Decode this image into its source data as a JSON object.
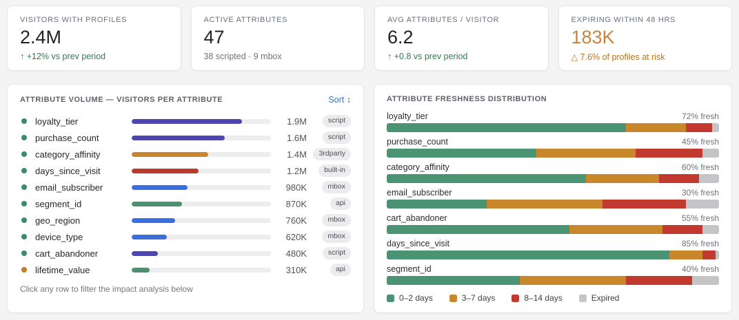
{
  "kpis": [
    {
      "label": "VISITORS WITH PROFILES",
      "value": "2.4M",
      "delta": "↑ +12% vs prev period",
      "tone": "positive",
      "value_tone": "default"
    },
    {
      "label": "ACTIVE ATTRIBUTES",
      "value": "47",
      "delta": "38 scripted · 9 mbox",
      "tone": "neutral",
      "value_tone": "default"
    },
    {
      "label": "AVG ATTRIBUTES / VISITOR",
      "value": "6.2",
      "delta": "↑ +0.8 vs prev period",
      "tone": "positive",
      "value_tone": "default"
    },
    {
      "label": "EXPIRING WITHIN 48 HRS",
      "value": "183K",
      "delta": "△ 7.6% of profiles at risk",
      "tone": "warning",
      "value_tone": "warning"
    }
  ],
  "volume_panel": {
    "title": "ATTRIBUTE VOLUME — VISITORS PER ATTRIBUTE",
    "sort_label": "Sort",
    "sort_icon": "↕",
    "footer": "Click any row to filter the impact analysis below",
    "rows": [
      {
        "name": "loyalty_tier",
        "value": "1.9M",
        "badge": "script",
        "bar_color": "purple",
        "bar_pct": 79,
        "dot": "green"
      },
      {
        "name": "purchase_count",
        "value": "1.6M",
        "badge": "script",
        "bar_color": "purple",
        "bar_pct": 67,
        "dot": "green"
      },
      {
        "name": "category_affinity",
        "value": "1.4M",
        "badge": "3rdparty",
        "bar_color": "orange",
        "bar_pct": 55,
        "dot": "green"
      },
      {
        "name": "days_since_visit",
        "value": "1.2M",
        "badge": "built-in",
        "bar_color": "red",
        "bar_pct": 48,
        "dot": "green"
      },
      {
        "name": "email_subscriber",
        "value": "980K",
        "badge": "mbox",
        "bar_color": "blue",
        "bar_pct": 40,
        "dot": "green"
      },
      {
        "name": "segment_id",
        "value": "870K",
        "badge": "api",
        "bar_color": "green",
        "bar_pct": 36,
        "dot": "green"
      },
      {
        "name": "geo_region",
        "value": "760K",
        "badge": "mbox",
        "bar_color": "blue",
        "bar_pct": 31,
        "dot": "green"
      },
      {
        "name": "device_type",
        "value": "620K",
        "badge": "mbox",
        "bar_color": "blue",
        "bar_pct": 25,
        "dot": "green"
      },
      {
        "name": "cart_abandoner",
        "value": "480K",
        "badge": "script",
        "bar_color": "purple",
        "bar_pct": 19,
        "dot": "green"
      },
      {
        "name": "lifetime_value",
        "value": "310K",
        "badge": "api",
        "bar_color": "green",
        "bar_pct": 13,
        "dot": "orange"
      }
    ]
  },
  "freshness_panel": {
    "title": "ATTRIBUTE FRESHNESS DISTRIBUTION",
    "rows": [
      {
        "name": "loyalty_tier",
        "pct_label": "72% fresh",
        "segments": [
          72,
          18,
          8,
          2
        ]
      },
      {
        "name": "purchase_count",
        "pct_label": "45% fresh",
        "segments": [
          45,
          30,
          20,
          5
        ]
      },
      {
        "name": "category_affinity",
        "pct_label": "60% fresh",
        "segments": [
          60,
          22,
          12,
          6
        ]
      },
      {
        "name": "email_subscriber",
        "pct_label": "30% fresh",
        "segments": [
          30,
          35,
          25,
          10
        ]
      },
      {
        "name": "cart_abandoner",
        "pct_label": "55% fresh",
        "segments": [
          55,
          28,
          12,
          5
        ]
      },
      {
        "name": "days_since_visit",
        "pct_label": "85% fresh",
        "segments": [
          85,
          10,
          4,
          1
        ]
      },
      {
        "name": "segment_id",
        "pct_label": "40% fresh",
        "segments": [
          40,
          32,
          20,
          8
        ]
      }
    ],
    "legend": [
      {
        "label": "0–2 days",
        "color": "#4b9473"
      },
      {
        "label": "3–7 days",
        "color": "#c8872b"
      },
      {
        "label": "8–14 days",
        "color": "#c23a2f"
      },
      {
        "label": "Expired",
        "color": "#c5c5c7"
      }
    ]
  },
  "chart_data": [
    {
      "type": "bar",
      "title": "ATTRIBUTE VOLUME — VISITORS PER ATTRIBUTE",
      "categories": [
        "loyalty_tier",
        "purchase_count",
        "category_affinity",
        "days_since_visit",
        "email_subscriber",
        "segment_id",
        "geo_region",
        "device_type",
        "cart_abandoner",
        "lifetime_value"
      ],
      "values": [
        1900000,
        1600000,
        1400000,
        1200000,
        980000,
        870000,
        760000,
        620000,
        480000,
        310000
      ],
      "value_labels": [
        "1.9M",
        "1.6M",
        "1.4M",
        "1.2M",
        "980K",
        "870K",
        "760K",
        "620K",
        "480K",
        "310K"
      ],
      "badges": [
        "script",
        "script",
        "3rdparty",
        "built-in",
        "mbox",
        "api",
        "mbox",
        "mbox",
        "script",
        "api"
      ],
      "xlim": [
        0,
        2400000
      ]
    },
    {
      "type": "bar",
      "subtype": "stacked-horizontal",
      "title": "ATTRIBUTE FRESHNESS DISTRIBUTION",
      "categories": [
        "loyalty_tier",
        "purchase_count",
        "category_affinity",
        "email_subscriber",
        "cart_abandoner",
        "days_since_visit",
        "segment_id"
      ],
      "series": [
        {
          "name": "0–2 days",
          "values": [
            72,
            45,
            60,
            30,
            55,
            85,
            40
          ]
        },
        {
          "name": "3–7 days",
          "values": [
            18,
            30,
            22,
            35,
            28,
            10,
            32
          ]
        },
        {
          "name": "8–14 days",
          "values": [
            8,
            20,
            12,
            25,
            12,
            4,
            20
          ]
        },
        {
          "name": "Expired",
          "values": [
            2,
            5,
            6,
            10,
            5,
            1,
            8
          ]
        }
      ],
      "annotations": [
        "72% fresh",
        "45% fresh",
        "60% fresh",
        "30% fresh",
        "55% fresh",
        "85% fresh",
        "40% fresh"
      ],
      "legend_position": "bottom",
      "xlim": [
        0,
        100
      ]
    }
  ],
  "colors": {
    "bars": {
      "purple": "#4c45b2",
      "blue": "#3b6edd",
      "orange": "#c8862a",
      "red": "#ba392f",
      "green": "#4a9170"
    },
    "dots": {
      "green": "#3a8b66",
      "orange": "#c2792a"
    },
    "segments": [
      "#4b9473",
      "#c8872b",
      "#c23a2f",
      "#c5c5c7"
    ],
    "accent_link": "#3d6fd2",
    "positive": "#2e7d52",
    "warning": "#b9741e",
    "warning_value": "#c9853f"
  }
}
